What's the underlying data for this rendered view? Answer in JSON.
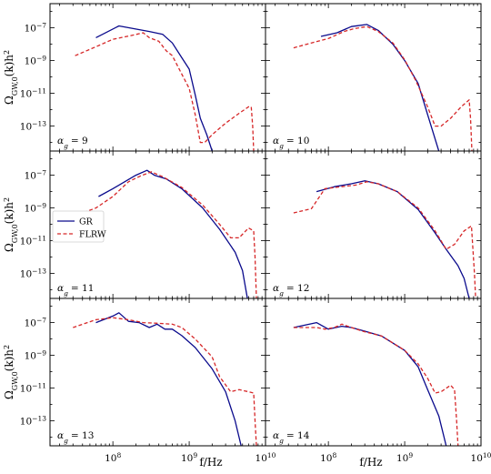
{
  "chart_data": {
    "type": "line",
    "layout": "3x2 grid, shared axes",
    "xscale": "log",
    "yscale": "log",
    "xlim": [
      15000000.0,
      10000000000.0
    ],
    "ylim": [
      3e-15,
      3e-06
    ],
    "xlabel": "f/Hz",
    "ylabel": "Ω_GW,0(k)h^2",
    "x_ticks": [
      {
        "value": 100000000.0,
        "base": "10",
        "exp": "8"
      },
      {
        "value": 1000000000.0,
        "base": "10",
        "exp": "9"
      },
      {
        "value": 10000000000.0,
        "base": "10",
        "exp": "10"
      }
    ],
    "y_ticks": [
      {
        "value": 1e-07,
        "base": "10",
        "exp": "−7"
      },
      {
        "value": 1e-09,
        "base": "10",
        "exp": "−9"
      },
      {
        "value": 1e-11,
        "base": "10",
        "exp": "−11"
      },
      {
        "value": 1e-13,
        "base": "10",
        "exp": "−13"
      }
    ],
    "legend": {
      "position": "center-left of middle-left panel",
      "entries": [
        {
          "name": "GR",
          "color": "#0a0a8c",
          "style": "solid"
        },
        {
          "name": "FLRW",
          "color": "#d62728",
          "style": "dashed"
        }
      ]
    },
    "series_colors": {
      "GR": "#0a0a8c",
      "FLRW": "#d62728"
    },
    "panels": [
      {
        "label_prefix": "α",
        "label_sub": "g",
        "label_value": "= 9",
        "GR": [
          [
            60000000.0,
            2.5e-08
          ],
          [
            120000000.0,
            1.3e-07
          ],
          [
            300000000.0,
            6e-08
          ],
          [
            450000000.0,
            4e-08
          ],
          [
            600000000.0,
            1.2e-08
          ],
          [
            800000000.0,
            1.5e-09
          ],
          [
            1000000000.0,
            3e-10
          ],
          [
            1200000000.0,
            8e-12
          ],
          [
            1400000000.0,
            3e-13
          ],
          [
            1700000000.0,
            3e-14
          ],
          [
            2000000000.0,
            3e-15
          ]
        ],
        "FLRW": [
          [
            32000000.0,
            2e-09
          ],
          [
            60000000.0,
            7e-09
          ],
          [
            100000000.0,
            2e-08
          ],
          [
            180000000.0,
            3.5e-08
          ],
          [
            250000000.0,
            5e-08
          ],
          [
            300000000.0,
            2.5e-08
          ],
          [
            400000000.0,
            1.5e-08
          ],
          [
            500000000.0,
            4e-09
          ],
          [
            600000000.0,
            2e-09
          ],
          [
            800000000.0,
            1.5e-10
          ],
          [
            1000000000.0,
            2e-11
          ],
          [
            1200000000.0,
            5e-13
          ],
          [
            1400000000.0,
            1e-14
          ],
          [
            1600000000.0,
            1e-14
          ],
          [
            2000000000.0,
            3e-14
          ],
          [
            3000000000.0,
            1.5e-13
          ],
          [
            4500000000.0,
            6e-13
          ],
          [
            6000000000.0,
            1.5e-12
          ],
          [
            6500000000.0,
            1.5e-12
          ],
          [
            6800000000.0,
            1e-13
          ],
          [
            7000000000.0,
            3e-15
          ]
        ]
      },
      {
        "label_prefix": "α",
        "label_sub": "g",
        "label_value": "= 10",
        "GR": [
          [
            80000000.0,
            3e-08
          ],
          [
            130000000.0,
            5e-08
          ],
          [
            200000000.0,
            1.2e-07
          ],
          [
            320000000.0,
            1.6e-07
          ],
          [
            450000000.0,
            7e-08
          ],
          [
            700000000.0,
            1e-08
          ],
          [
            1000000000.0,
            1e-09
          ],
          [
            1500000000.0,
            4e-11
          ],
          [
            2000000000.0,
            5e-13
          ],
          [
            2800000000.0,
            3e-15
          ]
        ],
        "FLRW": [
          [
            35000000.0,
            6e-09
          ],
          [
            60000000.0,
            1.2e-08
          ],
          [
            100000000.0,
            2.2e-08
          ],
          [
            160000000.0,
            6e-08
          ],
          [
            220000000.0,
            9e-08
          ],
          [
            320000000.0,
            1.2e-07
          ],
          [
            450000000.0,
            6e-08
          ],
          [
            700000000.0,
            1.2e-08
          ],
          [
            1000000000.0,
            1.1e-09
          ],
          [
            1400000000.0,
            6e-11
          ],
          [
            2000000000.0,
            1.5e-12
          ],
          [
            2500000000.0,
            1e-13
          ],
          [
            3000000000.0,
            1e-13
          ],
          [
            4000000000.0,
            3e-13
          ],
          [
            5500000000.0,
            1.5e-12
          ],
          [
            7000000000.0,
            4e-12
          ],
          [
            7300000000.0,
            3e-13
          ],
          [
            7600000000.0,
            3e-15
          ]
        ]
      },
      {
        "label_prefix": "α",
        "label_sub": "g",
        "label_value": "= 11",
        "GR": [
          [
            65000000.0,
            5e-09
          ],
          [
            100000000.0,
            1.5e-08
          ],
          [
            200000000.0,
            1e-07
          ],
          [
            280000000.0,
            2e-07
          ],
          [
            350000000.0,
            1e-07
          ],
          [
            500000000.0,
            6e-08
          ],
          [
            800000000.0,
            1.5e-08
          ],
          [
            1500000000.0,
            1e-09
          ],
          [
            2500000000.0,
            5e-11
          ],
          [
            4000000000.0,
            2e-12
          ],
          [
            5000000000.0,
            1.5e-13
          ],
          [
            5800000000.0,
            3e-15
          ]
        ],
        "FLRW": [
          [
            35000000.0,
            4e-10
          ],
          [
            60000000.0,
            1e-09
          ],
          [
            100000000.0,
            5e-09
          ],
          [
            160000000.0,
            4e-08
          ],
          [
            230000000.0,
            9e-08
          ],
          [
            320000000.0,
            1.6e-07
          ],
          [
            450000000.0,
            8e-08
          ],
          [
            800000000.0,
            1.8e-08
          ],
          [
            1500000000.0,
            1.5e-09
          ],
          [
            2500000000.0,
            1e-10
          ],
          [
            3500000000.0,
            1.5e-11
          ],
          [
            4500000000.0,
            1.5e-11
          ],
          [
            6000000000.0,
            6e-11
          ],
          [
            7000000000.0,
            4e-11
          ],
          [
            7300000000.0,
            1e-12
          ],
          [
            7600000000.0,
            3e-15
          ]
        ]
      },
      {
        "label_prefix": "α",
        "label_sub": "g",
        "label_value": "= 12",
        "GR": [
          [
            70000000.0,
            1e-08
          ],
          [
            120000000.0,
            2e-08
          ],
          [
            200000000.0,
            3e-08
          ],
          [
            300000000.0,
            4.5e-08
          ],
          [
            450000000.0,
            3e-08
          ],
          [
            800000000.0,
            1e-08
          ],
          [
            1500000000.0,
            8e-10
          ],
          [
            2500000000.0,
            3e-11
          ],
          [
            3500000000.0,
            3e-12
          ],
          [
            5000000000.0,
            3e-13
          ],
          [
            6000000000.0,
            5e-14
          ],
          [
            7000000000.0,
            3e-15
          ]
        ],
        "FLRW": [
          [
            35000000.0,
            5e-10
          ],
          [
            60000000.0,
            9e-10
          ],
          [
            90000000.0,
            1.5e-08
          ],
          [
            150000000.0,
            2e-08
          ],
          [
            230000000.0,
            2.5e-08
          ],
          [
            320000000.0,
            4e-08
          ],
          [
            450000000.0,
            3e-08
          ],
          [
            800000000.0,
            1e-08
          ],
          [
            1500000000.0,
            1e-09
          ],
          [
            2500000000.0,
            4e-11
          ],
          [
            3500000000.0,
            3e-12
          ],
          [
            4500000000.0,
            6e-12
          ],
          [
            6000000000.0,
            4e-11
          ],
          [
            7500000000.0,
            8e-11
          ],
          [
            8200000000.0,
            1e-13
          ],
          [
            8500000000.0,
            3e-15
          ]
        ]
      },
      {
        "label_prefix": "α",
        "label_sub": "g",
        "label_value": "= 13",
        "GR": [
          [
            60000000.0,
            1e-07
          ],
          [
            100000000.0,
            2.5e-07
          ],
          [
            120000000.0,
            4e-07
          ],
          [
            160000000.0,
            1.2e-07
          ],
          [
            220000000.0,
            1e-07
          ],
          [
            300000000.0,
            5e-08
          ],
          [
            380000000.0,
            8e-08
          ],
          [
            480000000.0,
            4e-08
          ],
          [
            600000000.0,
            4e-08
          ],
          [
            800000000.0,
            1.6e-08
          ],
          [
            1200000000.0,
            3e-09
          ],
          [
            2000000000.0,
            1.5e-10
          ],
          [
            3000000000.0,
            6e-12
          ],
          [
            4000000000.0,
            1e-13
          ],
          [
            4800000000.0,
            3e-15
          ]
        ],
        "FLRW": [
          [
            30000000.0,
            5e-08
          ],
          [
            60000000.0,
            1.5e-07
          ],
          [
            100000000.0,
            2e-07
          ],
          [
            160000000.0,
            1.5e-07
          ],
          [
            250000000.0,
            1e-07
          ],
          [
            400000000.0,
            9e-08
          ],
          [
            600000000.0,
            8e-08
          ],
          [
            800000000.0,
            5e-08
          ],
          [
            1200000000.0,
            1e-08
          ],
          [
            2000000000.0,
            8e-10
          ],
          [
            2500000000.0,
            5e-11
          ],
          [
            3500000000.0,
            6e-12
          ],
          [
            4500000000.0,
            8e-12
          ],
          [
            6000000000.0,
            6e-12
          ],
          [
            7000000000.0,
            5e-12
          ],
          [
            7300000000.0,
            1e-13
          ],
          [
            7600000000.0,
            3e-15
          ]
        ]
      },
      {
        "label_prefix": "α",
        "label_sub": "g",
        "label_value": "= 14",
        "GR": [
          [
            35000000.0,
            5e-08
          ],
          [
            70000000.0,
            1e-07
          ],
          [
            100000000.0,
            4e-08
          ],
          [
            150000000.0,
            6e-08
          ],
          [
            200000000.0,
            5e-08
          ],
          [
            300000000.0,
            3e-08
          ],
          [
            500000000.0,
            1.5e-08
          ],
          [
            1000000000.0,
            2e-09
          ],
          [
            1500000000.0,
            2e-10
          ],
          [
            2000000000.0,
            8e-12
          ],
          [
            2800000000.0,
            2e-13
          ],
          [
            3500000000.0,
            3e-15
          ]
        ],
        "FLRW": [
          [
            35000000.0,
            5e-08
          ],
          [
            70000000.0,
            5e-08
          ],
          [
            90000000.0,
            4e-08
          ],
          [
            120000000.0,
            5e-08
          ],
          [
            150000000.0,
            8e-08
          ],
          [
            200000000.0,
            5e-08
          ],
          [
            280000000.0,
            3e-08
          ],
          [
            500000000.0,
            1.5e-08
          ],
          [
            1000000000.0,
            2e-09
          ],
          [
            1500000000.0,
            3e-10
          ],
          [
            2000000000.0,
            4e-11
          ],
          [
            2500000000.0,
            5e-12
          ],
          [
            3000000000.0,
            6e-12
          ],
          [
            4000000000.0,
            1.5e-11
          ],
          [
            4500000000.0,
            8e-12
          ],
          [
            4800000000.0,
            1e-13
          ],
          [
            5000000000.0,
            3e-15
          ]
        ]
      }
    ]
  }
}
